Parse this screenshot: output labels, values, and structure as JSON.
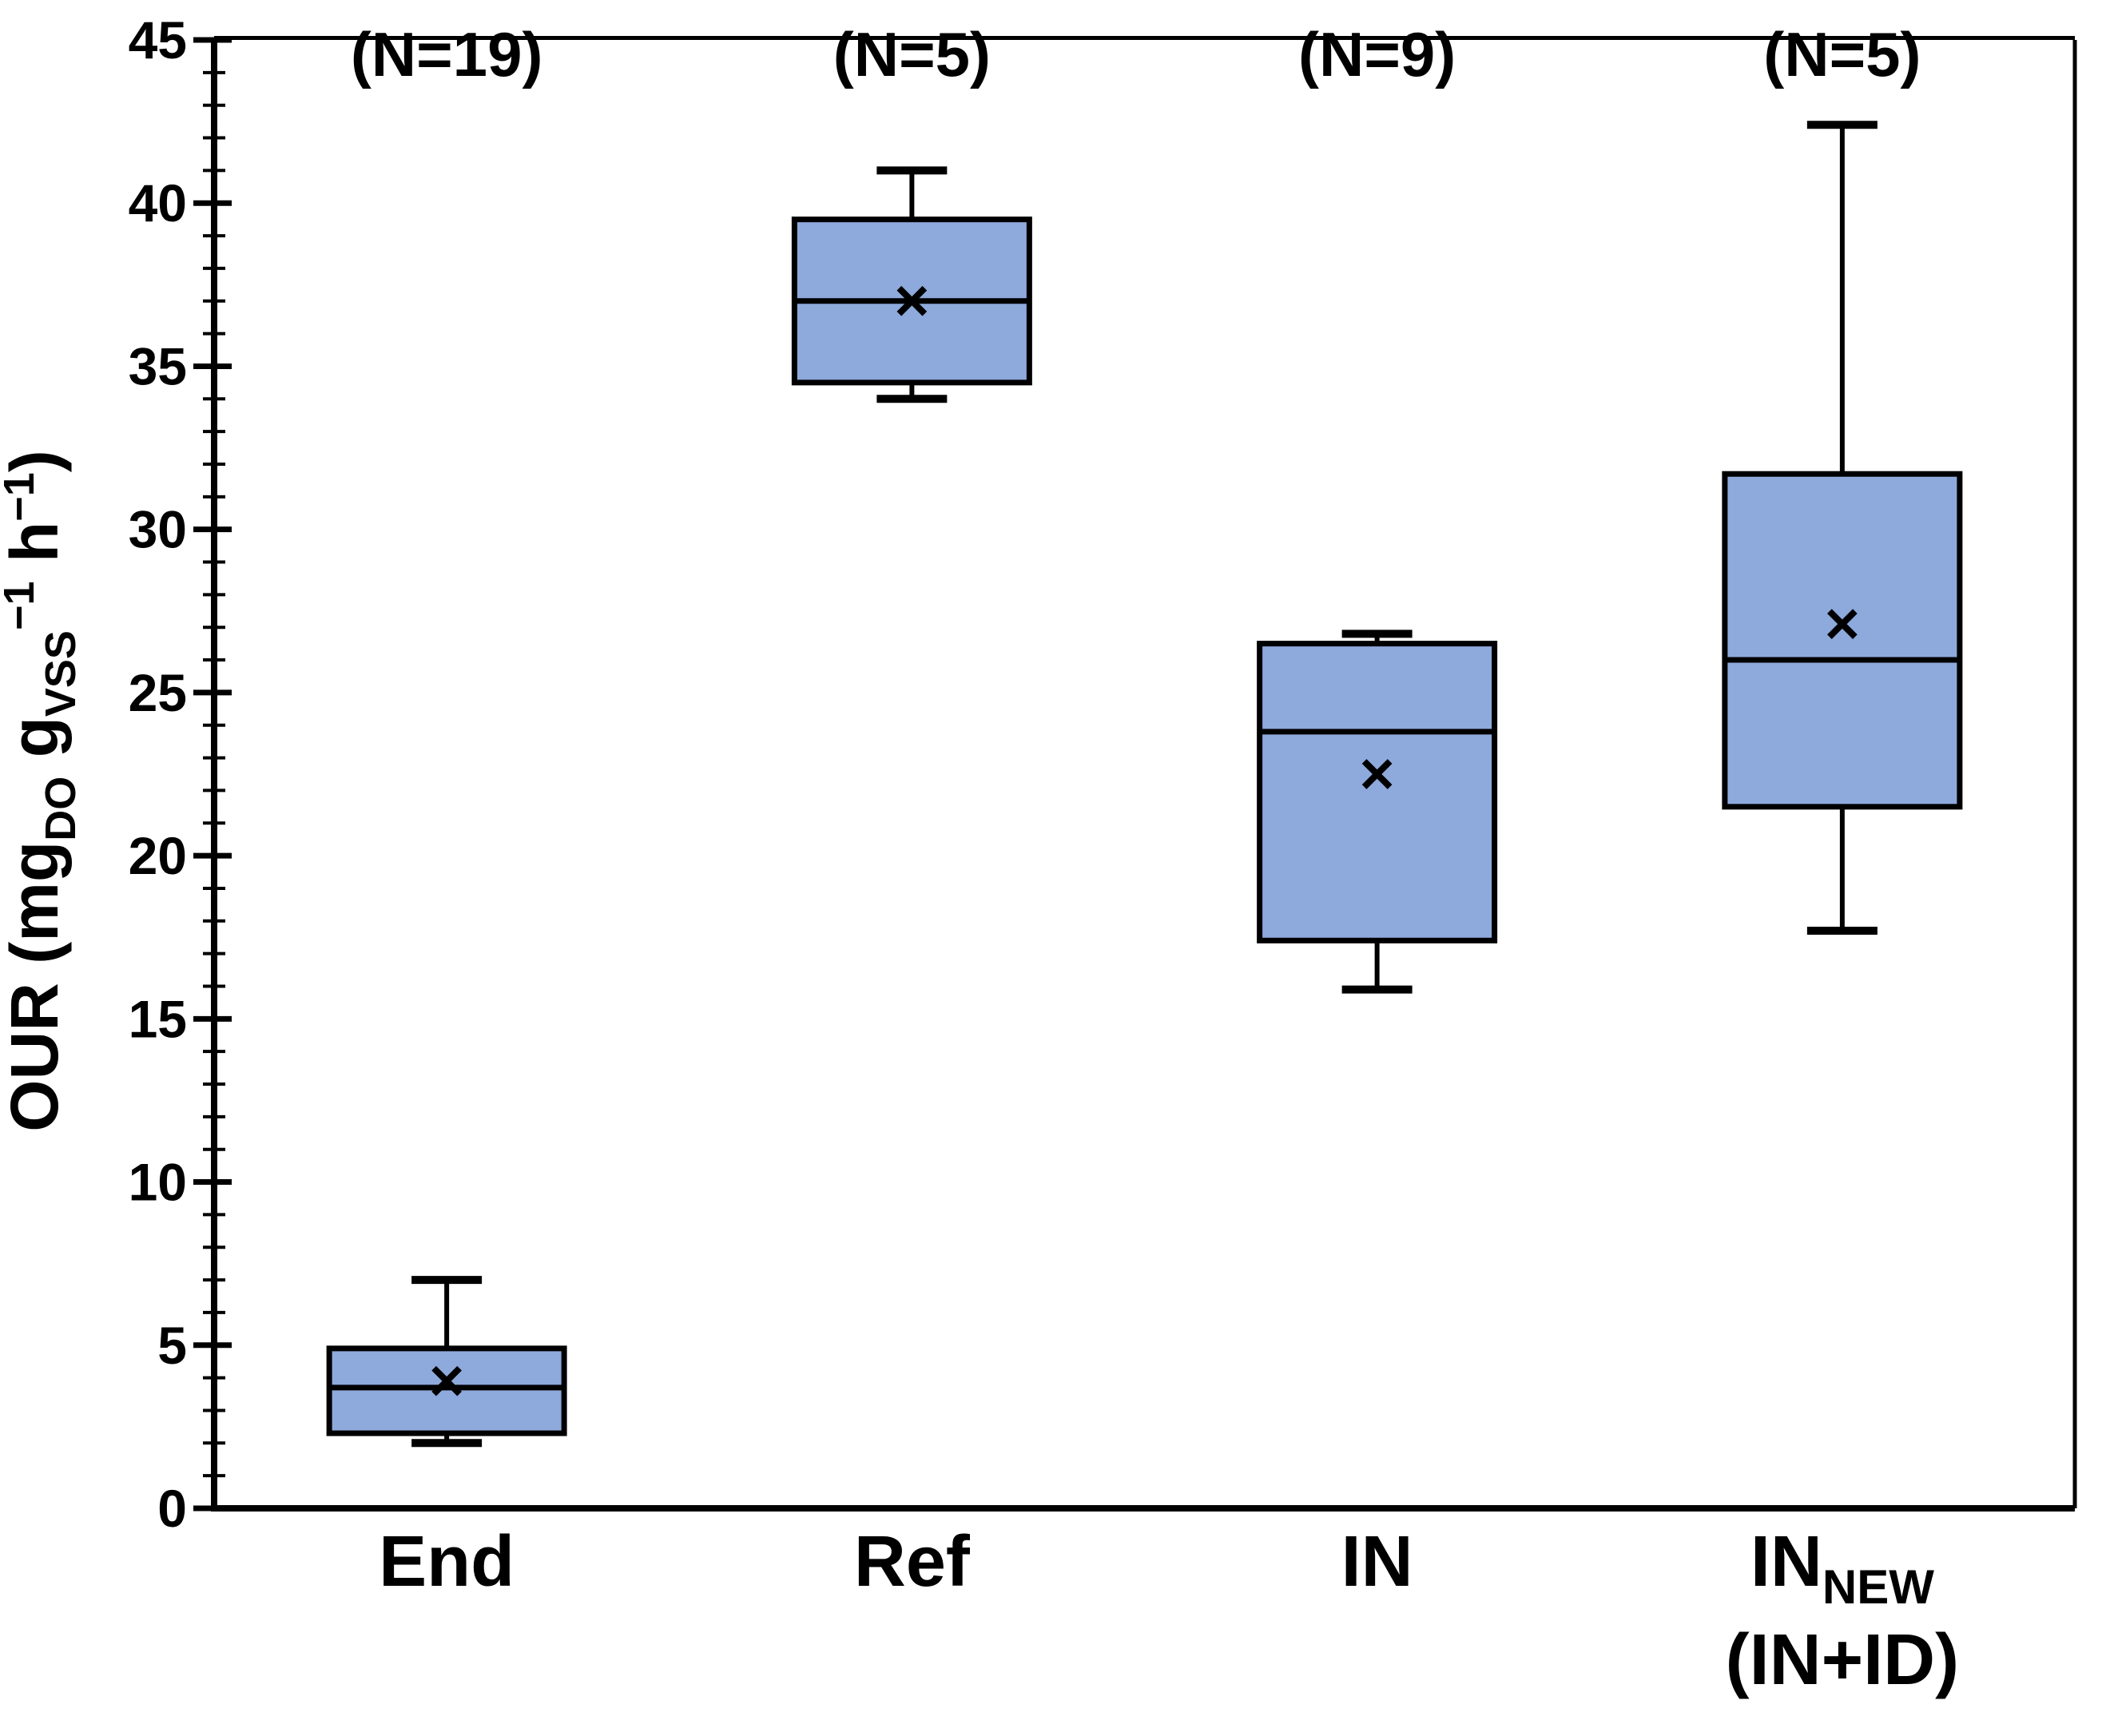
{
  "chart_data": {
    "type": "boxplot",
    "title": "",
    "xlabel": "",
    "ylabel_plain": "OUR (mgDO gVSS-1 h-1)",
    "ylabel_segments": [
      {
        "text": "OUR (mg",
        "script": "normal"
      },
      {
        "text": "DO",
        "script": "sub"
      },
      {
        "text": " g",
        "script": "normal"
      },
      {
        "text": "VSS",
        "script": "sub"
      },
      {
        "text": "−1",
        "script": "super"
      },
      {
        "text": " h",
        "script": "normal"
      },
      {
        "text": "−1",
        "script": "super"
      },
      {
        "text": ")",
        "script": "normal"
      }
    ],
    "ylim": [
      0,
      45
    ],
    "ytick_major_step": 5,
    "ytick_minor_step": 1,
    "ytick_labels": [
      "0",
      "5",
      "10",
      "15",
      "20",
      "25",
      "30",
      "35",
      "40",
      "45"
    ],
    "grid": false,
    "legend_position": "none",
    "box_fill_color": "#8EA9DC",
    "box_border_color": "#000000",
    "whisker_color": "#000000",
    "mean_marker": "x",
    "mean_marker_color": "#000000",
    "categories": [
      "End",
      "Ref",
      "IN",
      "IN_NEW (IN+ID)"
    ],
    "series": [
      {
        "name": "End",
        "name_subscript": "",
        "name_line2": "",
        "n_label": "(N=19)",
        "whisker_low": 2.0,
        "q1": 2.3,
        "median": 3.7,
        "mean": 3.9,
        "q3": 4.9,
        "whisker_high": 7.0
      },
      {
        "name": "Ref",
        "name_subscript": "",
        "name_line2": "",
        "n_label": "(N=5)",
        "whisker_low": 34.0,
        "q1": 34.5,
        "median": 37.0,
        "mean": 37.0,
        "q3": 39.5,
        "whisker_high": 41.0
      },
      {
        "name": "IN",
        "name_subscript": "",
        "name_line2": "",
        "n_label": "(N=9)",
        "whisker_low": 15.9,
        "q1": 17.4,
        "median": 23.8,
        "mean": 22.5,
        "q3": 26.5,
        "whisker_high": 26.8
      },
      {
        "name": "IN",
        "name_subscript": "NEW",
        "name_line2": "(IN+ID)",
        "n_label": "(N=5)",
        "whisker_low": 17.7,
        "q1": 21.5,
        "median": 26.0,
        "mean": 27.1,
        "q3": 31.7,
        "whisker_high": 42.4
      }
    ]
  }
}
